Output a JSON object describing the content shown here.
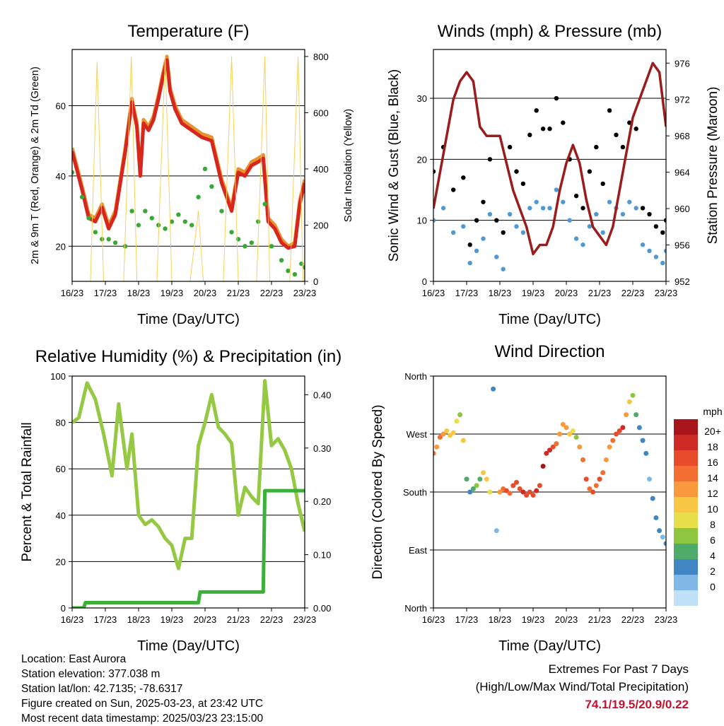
{
  "xticks": [
    "16/23",
    "17/23",
    "18/23",
    "19/23",
    "20/23",
    "21/23",
    "22/23",
    "23/23"
  ],
  "xlabel": "Time (Day/UTC)",
  "info": {
    "location": "Location: East Aurora",
    "elevation": "Station elevation: 377.038 m",
    "latlon": "Station lat/lon: 42.7135; -78.6317",
    "created": "Figure created on Sun, 2025-03-23, at 23:42 UTC",
    "recent": "Most recent data timestamp: 2025/03/23 23:15:00"
  },
  "extremes": {
    "title": "Extremes For Past 7 Days",
    "subtitle": "(High/Low/Max Wind/Total Precipitation)",
    "values": "74.1/19.5/20.9/0.22",
    "value_color": "#c8102e"
  },
  "chart_data": [
    {
      "id": "temperature",
      "type": "line",
      "title": "Temperature (F)",
      "xlabel": "Time (Day/UTC)",
      "ylabel": "2m & 9m T (Red, Orange) & 2m Td (Green)",
      "ylabel_right": "Solar Insolation (Yellow)",
      "ylim": [
        10,
        76
      ],
      "yticks": [
        20,
        40,
        60
      ],
      "ylim_right": [
        0,
        825
      ],
      "yticks_right": [
        0,
        200,
        400,
        600,
        800
      ],
      "xlim": [
        16,
        23
      ],
      "grid": true,
      "series": [
        {
          "color": "#e8922e",
          "axis": "left",
          "style": "line",
          "x": [
            16.0,
            16.3,
            16.5,
            16.7,
            16.9,
            17.1,
            17.3,
            17.6,
            17.8,
            17.95,
            18.05,
            18.15,
            18.3,
            18.45,
            18.6,
            18.75,
            18.85,
            18.95,
            19.1,
            19.3,
            19.6,
            19.9,
            20.2,
            20.5,
            20.8,
            21.0,
            21.2,
            21.4,
            21.6,
            21.75,
            21.9,
            22.1,
            22.3,
            22.5,
            22.7,
            22.85,
            23.0
          ],
          "y": [
            48,
            37,
            29,
            28,
            32,
            26,
            30,
            48,
            62,
            55,
            40,
            56,
            54,
            57,
            63,
            70,
            74,
            65,
            60,
            56,
            54,
            52,
            51,
            39,
            31,
            42,
            41,
            44,
            45,
            46,
            28,
            26,
            22,
            20,
            21,
            33,
            39
          ]
        },
        {
          "color": "#d7261e",
          "axis": "left",
          "style": "line",
          "x": [
            16.0,
            16.3,
            16.5,
            16.7,
            16.9,
            17.1,
            17.3,
            17.6,
            17.8,
            17.95,
            18.05,
            18.15,
            18.3,
            18.45,
            18.6,
            18.75,
            18.85,
            18.95,
            19.1,
            19.3,
            19.6,
            19.9,
            20.2,
            20.5,
            20.8,
            21.0,
            21.2,
            21.4,
            21.6,
            21.75,
            21.9,
            22.1,
            22.3,
            22.5,
            22.7,
            22.85,
            23.0
          ],
          "y": [
            47,
            36,
            28,
            27,
            31,
            25,
            29,
            47,
            61,
            54,
            40,
            55,
            53,
            56,
            62,
            69,
            73,
            64,
            59,
            55,
            53,
            51,
            50,
            38,
            30,
            41,
            40,
            43,
            44,
            45,
            27,
            25,
            21,
            19.5,
            20,
            32,
            38
          ]
        },
        {
          "color": "#3aa834",
          "axis": "left",
          "style": "dots",
          "x": [
            16.0,
            16.3,
            16.5,
            16.7,
            16.9,
            17.1,
            17.3,
            17.6,
            17.8,
            18.0,
            18.2,
            18.4,
            18.6,
            18.8,
            19.0,
            19.2,
            19.4,
            19.6,
            19.8,
            20.0,
            20.2,
            20.5,
            20.8,
            21.0,
            21.2,
            21.4,
            21.6,
            21.8,
            22.0,
            22.3,
            22.5,
            22.7,
            22.9,
            23.0
          ],
          "y": [
            41,
            34,
            28,
            24,
            22,
            22,
            21,
            20,
            30,
            26,
            30,
            28,
            26,
            25,
            27,
            29,
            27,
            26,
            34,
            42,
            37,
            30,
            24,
            22,
            20,
            21,
            27,
            32,
            20,
            16,
            13,
            12,
            15,
            14
          ]
        },
        {
          "color": "#f4d25a",
          "axis": "right",
          "style": "thin-line",
          "x": [
            16.0,
            16.55,
            16.75,
            16.95,
            17.15,
            17.55,
            17.78,
            17.95,
            18.2,
            18.55,
            18.8,
            19.0,
            19.2,
            19.55,
            19.8,
            19.95,
            20.2,
            20.55,
            20.8,
            21.0,
            21.2,
            21.55,
            21.8,
            21.95,
            22.2,
            22.55,
            22.8,
            22.95,
            23.0
          ],
          "y": [
            0,
            0,
            780,
            0,
            0,
            0,
            800,
            0,
            0,
            0,
            800,
            0,
            0,
            0,
            250,
            0,
            0,
            0,
            800,
            0,
            0,
            0,
            800,
            0,
            0,
            0,
            800,
            0,
            0
          ]
        }
      ]
    },
    {
      "id": "winds",
      "type": "scatter",
      "title": "Winds (mph) & Pressure (mb)",
      "xlabel": "Time (Day/UTC)",
      "ylabel": "Sonic Wind & Gust (Blue, Black)",
      "ylabel_right": "Station Pressure (Maroon)",
      "ylim": [
        0,
        38
      ],
      "yticks": [
        0,
        10,
        20,
        30
      ],
      "ylim_right": [
        952,
        977.5
      ],
      "yticks_right": [
        952,
        956,
        960,
        964,
        968,
        972,
        976
      ],
      "xlim": [
        16,
        23
      ],
      "grid": true,
      "series": [
        {
          "color": "#000000",
          "axis": "left",
          "style": "dots",
          "x": [
            16.0,
            16.3,
            16.6,
            16.9,
            17.1,
            17.3,
            17.5,
            17.7,
            17.9,
            18.1,
            18.3,
            18.5,
            18.7,
            18.9,
            19.1,
            19.3,
            19.5,
            19.7,
            19.9,
            20.1,
            20.3,
            20.5,
            20.7,
            20.9,
            21.1,
            21.3,
            21.5,
            21.7,
            21.9,
            22.1,
            22.3,
            22.5,
            22.7,
            22.9,
            23.0
          ],
          "y": [
            18,
            22,
            15,
            17,
            6,
            10,
            13,
            20,
            10,
            8,
            22,
            18,
            16,
            24,
            28,
            25,
            25,
            30,
            26,
            20,
            14,
            12,
            18,
            22,
            16,
            28,
            24,
            22,
            26,
            25,
            12,
            11,
            9,
            8,
            10
          ]
        },
        {
          "color": "#4f98d6",
          "axis": "left",
          "style": "dots",
          "x": [
            16.0,
            16.3,
            16.6,
            16.9,
            17.1,
            17.3,
            17.5,
            17.7,
            17.9,
            18.1,
            18.3,
            18.5,
            18.7,
            18.9,
            19.1,
            19.3,
            19.5,
            19.7,
            19.9,
            20.1,
            20.3,
            20.5,
            20.7,
            20.9,
            21.1,
            21.3,
            21.5,
            21.7,
            21.9,
            22.1,
            22.3,
            22.5,
            22.7,
            22.9,
            23.0
          ],
          "y": [
            10,
            12,
            8,
            9,
            3,
            5,
            7,
            11,
            4,
            2,
            11,
            9,
            8,
            12,
            13,
            12,
            12,
            15,
            13,
            10,
            7,
            6,
            9,
            11,
            8,
            13,
            12,
            11,
            13,
            12,
            6,
            5,
            4,
            3,
            5
          ]
        },
        {
          "color": "#9b1c1c",
          "axis": "right",
          "style": "line",
          "x": [
            16.0,
            16.3,
            16.6,
            16.8,
            17.0,
            17.2,
            17.4,
            17.6,
            17.8,
            18.0,
            18.2,
            18.4,
            18.6,
            18.8,
            19.0,
            19.2,
            19.4,
            19.6,
            19.8,
            20.0,
            20.2,
            20.4,
            20.6,
            20.8,
            21.0,
            21.2,
            21.4,
            21.6,
            21.8,
            22.0,
            22.2,
            22.4,
            22.6,
            22.8,
            23.0
          ],
          "y": [
            960,
            966,
            972,
            974,
            975,
            974,
            969,
            968,
            968,
            968,
            965,
            962,
            960,
            958,
            955,
            956,
            956,
            958,
            962,
            965,
            967,
            965,
            961,
            958,
            957,
            956,
            958,
            962,
            966,
            970,
            972,
            974,
            976,
            975,
            969
          ]
        }
      ]
    },
    {
      "id": "humidity",
      "type": "line",
      "title": "Relative Humidity (%) & Precipitation (in)",
      "xlabel": "Time (Day/UTC)",
      "ylabel": "Percent & Total Rainfall",
      "ylim": [
        0,
        100
      ],
      "yticks": [
        0,
        20,
        40,
        60,
        80,
        100
      ],
      "ylim_right": [
        0,
        0.435
      ],
      "yticks_right": [
        0.0,
        0.1,
        0.2,
        0.3,
        0.4
      ],
      "xlim": [
        16,
        23
      ],
      "grid": true,
      "series": [
        {
          "color": "#95c943",
          "axis": "left",
          "style": "line",
          "x": [
            16.0,
            16.2,
            16.45,
            16.7,
            16.95,
            17.2,
            17.4,
            17.65,
            17.8,
            18.0,
            18.2,
            18.4,
            18.6,
            18.8,
            19.0,
            19.2,
            19.4,
            19.6,
            19.8,
            20.0,
            20.2,
            20.4,
            20.6,
            20.8,
            21.0,
            21.2,
            21.4,
            21.6,
            21.8,
            22.0,
            22.2,
            22.4,
            22.6,
            22.8,
            23.0
          ],
          "y": [
            80,
            82,
            97,
            90,
            75,
            57,
            88,
            60,
            75,
            40,
            36,
            38,
            35,
            30,
            27,
            17,
            30,
            30,
            70,
            80,
            92,
            78,
            75,
            71,
            40,
            52,
            48,
            45,
            98,
            70,
            73,
            68,
            60,
            45,
            33
          ]
        },
        {
          "color": "#3db03a",
          "axis": "right",
          "style": "line",
          "x": [
            16.0,
            16.35,
            16.4,
            17.5,
            18.5,
            19.5,
            19.8,
            19.85,
            20.5,
            21.5,
            21.75,
            21.8,
            22.0,
            22.5,
            23.0
          ],
          "y": [
            0.0,
            0.0,
            0.01,
            0.01,
            0.01,
            0.01,
            0.01,
            0.03,
            0.03,
            0.03,
            0.03,
            0.22,
            0.22,
            0.22,
            0.22
          ]
        }
      ]
    },
    {
      "id": "wind_direction",
      "type": "scatter",
      "title": "Wind Direction",
      "xlabel": "Time (Day/UTC)",
      "ylabel": "Direction (Colored By Speed)",
      "ylim": [
        0,
        360
      ],
      "yticks": [
        0,
        90,
        180,
        270,
        360
      ],
      "ytick_labels": [
        "North",
        "East",
        "South",
        "West",
        "North"
      ],
      "xlim": [
        16,
        23
      ],
      "grid": true,
      "colorbar": {
        "title": "mph",
        "labels": [
          "20+",
          "18",
          "16",
          "14",
          "12",
          "10",
          "8",
          "6",
          "4",
          "2",
          "0"
        ],
        "colors": [
          "#a8161c",
          "#cf2a25",
          "#e84b2a",
          "#f26e32",
          "#f89a3b",
          "#f7c744",
          "#e7df4a",
          "#8cc63f",
          "#4fab6a",
          "#3f86c3",
          "#7fb8e6",
          "#bfe0f6"
        ]
      },
      "points": {
        "x": [
          16.0,
          16.1,
          16.2,
          16.3,
          16.4,
          16.5,
          16.6,
          16.7,
          16.8,
          16.9,
          17.0,
          17.1,
          17.2,
          17.3,
          17.4,
          17.5,
          17.6,
          17.7,
          17.8,
          17.9,
          18.0,
          18.1,
          18.2,
          18.3,
          18.4,
          18.5,
          18.6,
          18.7,
          18.8,
          18.9,
          19.0,
          19.1,
          19.2,
          19.3,
          19.4,
          19.5,
          19.6,
          19.7,
          19.8,
          19.9,
          20.0,
          20.1,
          20.2,
          20.3,
          20.4,
          20.5,
          20.6,
          20.7,
          20.8,
          20.9,
          21.0,
          21.1,
          21.2,
          21.3,
          21.4,
          21.5,
          21.6,
          21.7,
          21.8,
          21.9,
          22.0,
          22.1,
          22.2,
          22.3,
          22.4,
          22.5,
          22.6,
          22.7,
          22.8,
          22.9,
          23.0
        ],
        "y": [
          240,
          250,
          265,
          270,
          275,
          268,
          272,
          290,
          300,
          260,
          200,
          180,
          185,
          190,
          200,
          210,
          200,
          180,
          340,
          120,
          180,
          185,
          182,
          178,
          190,
          195,
          185,
          180,
          175,
          180,
          175,
          182,
          190,
          220,
          240,
          245,
          250,
          255,
          270,
          285,
          280,
          270,
          275,
          265,
          250,
          230,
          200,
          185,
          180,
          190,
          200,
          210,
          230,
          250,
          260,
          270,
          275,
          280,
          300,
          320,
          330,
          300,
          280,
          260,
          240,
          200,
          170,
          140,
          120,
          110,
          100
        ],
        "speed": [
          14,
          12,
          14,
          12,
          10,
          11,
          10,
          9,
          8,
          10,
          5,
          4,
          6,
          7,
          6,
          10,
          11,
          9,
          3,
          2,
          13,
          14,
          16,
          15,
          16,
          17,
          16,
          18,
          17,
          16,
          16,
          18,
          17,
          20,
          19,
          18,
          16,
          14,
          12,
          13,
          12,
          10,
          9,
          8,
          12,
          14,
          16,
          15,
          16,
          14,
          16,
          14,
          13,
          12,
          14,
          16,
          17,
          18,
          12,
          10,
          8,
          6,
          4,
          3,
          3,
          2,
          3,
          4,
          3,
          2,
          3
        ]
      }
    }
  ]
}
